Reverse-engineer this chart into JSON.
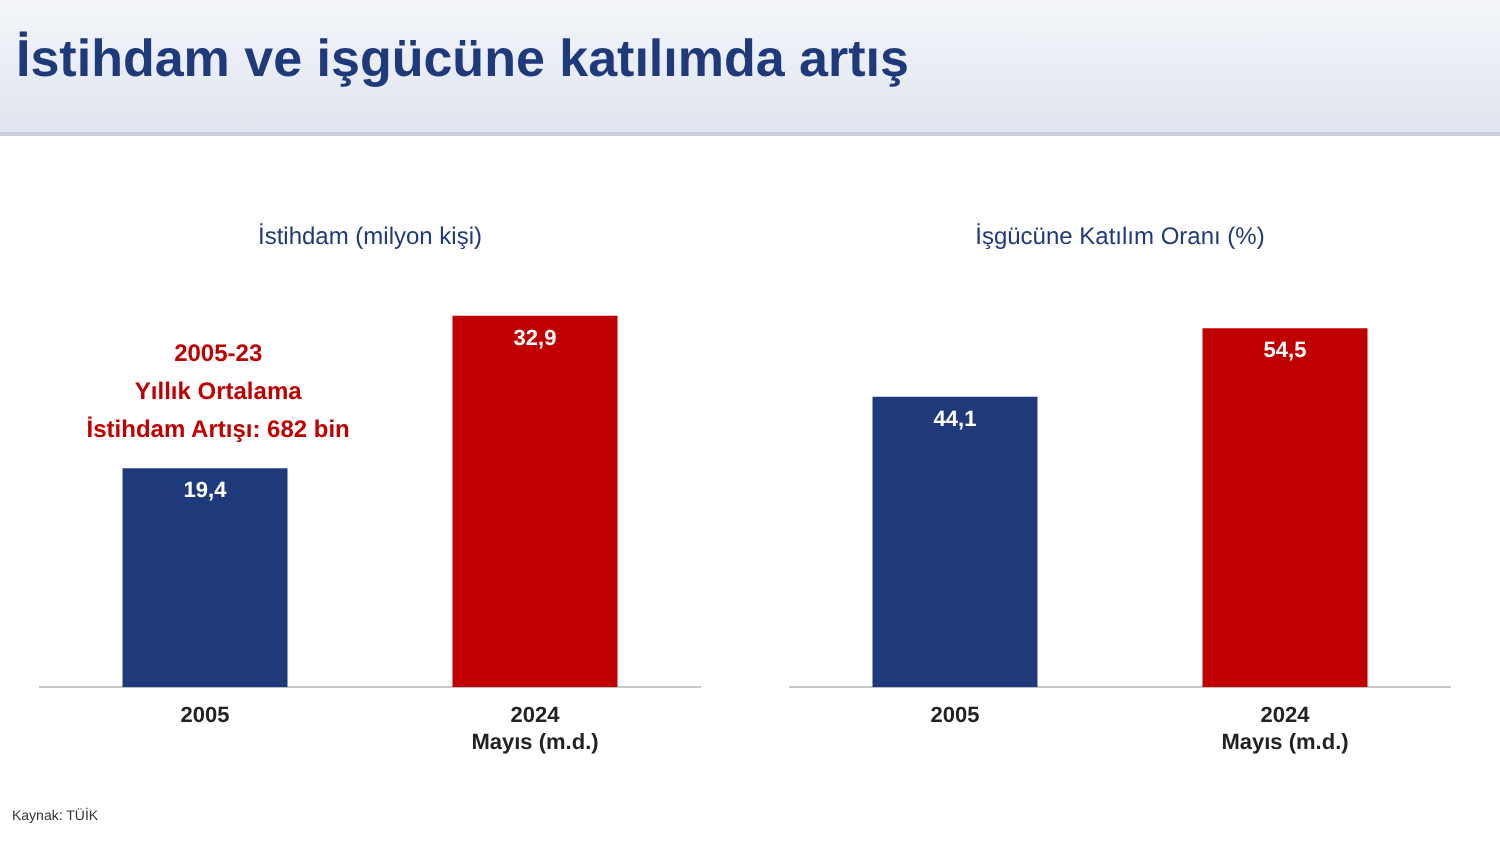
{
  "chart_data": [
    {
      "type": "other",
      "title": "İstihdam ve işgücüne katılımda artış",
      "annotations": [
        "Kaynak: TÜİK"
      ]
    },
    {
      "type": "bar",
      "title": "İstihdam (milyon kişi)",
      "categories": [
        "2005",
        "2024\nMayıs (m.d.)"
      ],
      "values": [
        19.4,
        32.9
      ],
      "value_labels": [
        "19,4",
        "32,9"
      ],
      "colors": [
        "#1f3a7a",
        "#c00000"
      ],
      "grid": false,
      "legend": false,
      "tick_labels": "x",
      "annotations": [
        "2005-23\nYıllık Ortalama\nİstihdam Artışı: 682 bin"
      ]
    },
    {
      "type": "bar",
      "title": "İşgücüne Katılım Oranı (%)",
      "categories": [
        "2005",
        "2024\nMayıs (m.d.)"
      ],
      "values": [
        44.1,
        54.5
      ],
      "value_labels": [
        "44,1",
        "54,5"
      ],
      "colors": [
        "#1f3a7a",
        "#c00000"
      ],
      "grid": false,
      "legend": false,
      "tick_labels": "x"
    }
  ]
}
